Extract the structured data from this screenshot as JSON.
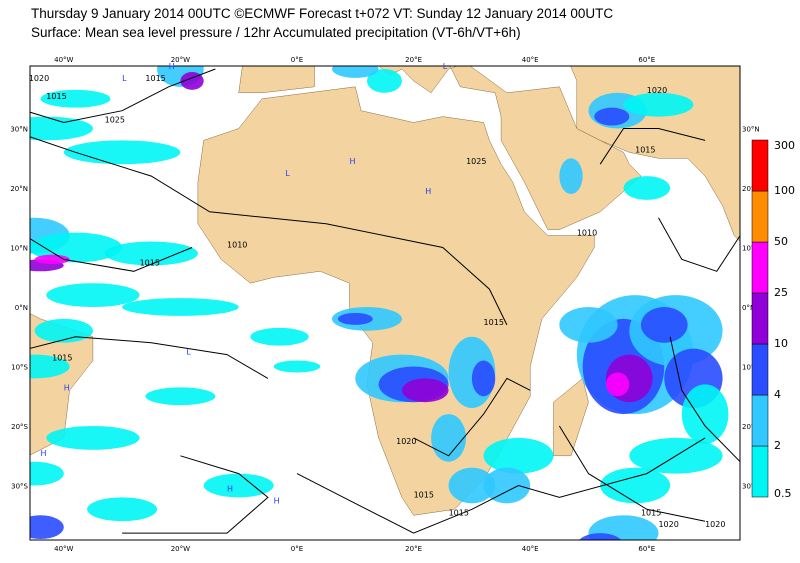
{
  "header": {
    "line1": "Thursday 9 January 2014 00UTC ©ECMWF Forecast t+072 VT: Sunday 12 January 2014 00UTC",
    "line2": "Surface: Mean sea level pressure / 12hr Accumulated precipitation (VT-6h/VT+6h)"
  },
  "map": {
    "longitude_labels": [
      "40°W",
      "20°W",
      "0°E",
      "20°E",
      "40°E",
      "60°E"
    ],
    "latitude_labels": [
      "30°N",
      "20°N",
      "10°N",
      "0°N",
      "10°S",
      "20°S",
      "30°S"
    ],
    "isobar_labels": [
      "1020",
      "1015",
      "1025",
      "1015",
      "1015",
      "1010",
      "1015",
      "1025",
      "1020",
      "1015",
      "1015",
      "1010",
      "1015",
      "1020",
      "1015",
      "1020",
      "1015",
      "1020"
    ],
    "pressure_centres": [
      "H",
      "H",
      "L",
      "H",
      "L",
      "H",
      "H",
      "L",
      "H",
      "L",
      "H"
    ]
  },
  "colorbar": {
    "labels": [
      "0.5",
      "2",
      "4",
      "10",
      "25",
      "50",
      "100",
      "300"
    ],
    "colors": [
      "#00f5f5",
      "#30c8ff",
      "#2a4dff",
      "#9000d8",
      "#ff00ff",
      "#ff8c00",
      "#ff0000"
    ]
  }
}
